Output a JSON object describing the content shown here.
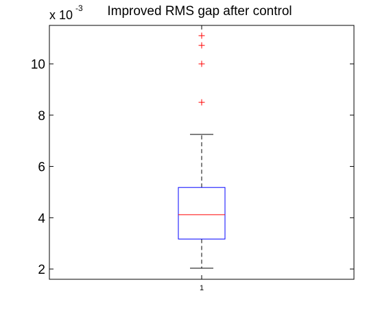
{
  "chart_data": {
    "type": "box",
    "title": "Improved RMS gap after control",
    "exponent_label": {
      "base": "x 10",
      "power": "-3"
    },
    "categories": [
      "1"
    ],
    "ylim": [
      1.6,
      11.5
    ],
    "yticks": [
      2,
      4,
      6,
      8,
      10
    ],
    "ytick_labels": [
      "2",
      "4",
      "6",
      "8",
      "10"
    ],
    "boxes": [
      {
        "category": "1",
        "lower_whisker": 2.03,
        "q1": 3.17,
        "median": 4.12,
        "q3": 5.18,
        "upper_whisker": 7.25,
        "outliers": [
          8.5,
          10.0,
          10.72,
          11.1
        ]
      }
    ],
    "colors": {
      "box": "#0000ff",
      "median": "#ff0000",
      "outlier": "#ff0000",
      "whisker": "#000000"
    },
    "grid": false
  }
}
